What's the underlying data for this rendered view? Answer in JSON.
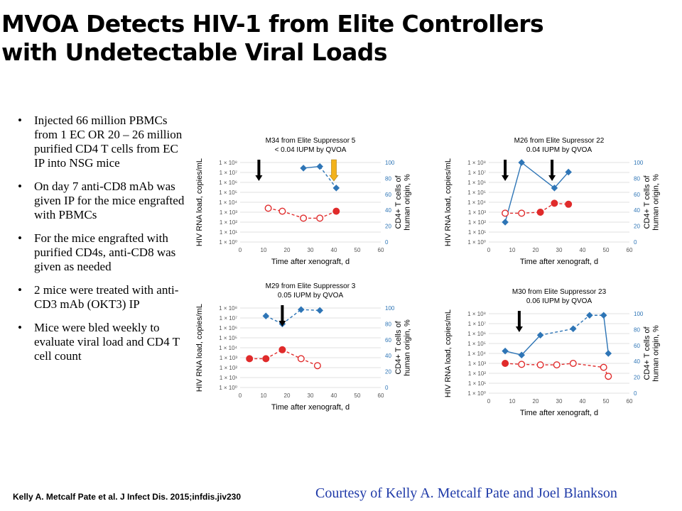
{
  "title": {
    "line1": "MVOA Detects HIV-1 from Elite Controllers",
    "line2": "with Undetectable Viral Loads"
  },
  "bullets": [
    "Injected 66 million PBMCs from 1 EC OR 20 – 26 million purified CD4 T cells from EC IP into NSG mice",
    "On day 7 anti-CD8 mAb was given IP for the mice engrafted with PBMCs",
    "For the mice engrafted with purified CD4s, anti-CD8 was given as needed",
    "2 mice were treated with anti-CD3 mAb (OKT3) IP",
    "Mice were bled weekly to evaluate viral load and CD4 T cell count"
  ],
  "citation": "Kelly A. Metcalf Pate et al. J Infect Dis. 2015;infdis.jiv230",
  "courtesy": "Courtesy of Kelly A. Metcalf Pate and Joel Blankson",
  "colors": {
    "cd4": "#2e75b6",
    "hiv": "#e02b2b",
    "black_arrow": "#000000",
    "orange_arrow": "#f3b21b"
  },
  "chart_data": [
    {
      "type": "line",
      "title": "M34 from Elite Suppressor 5",
      "subtitle": "< 0.04 IUPM by QVOA",
      "xlabel": "Time after xenograft, d",
      "ylabel": "HIV RNA load, copies/mL",
      "ylabel_right": "CD4+ T cells of human origin, %",
      "xlim": [
        0,
        60
      ],
      "xticks": [
        "0",
        "10",
        "20",
        "30",
        "40",
        "50",
        "60"
      ],
      "ylim_left_log10": [
        0,
        8
      ],
      "yticks_left": [
        "1 × 10⁰",
        "1 × 10¹",
        "1 × 10²",
        "1 × 10³",
        "1 × 10⁴",
        "1 × 10⁵",
        "1 × 10⁶",
        "1 × 10⁷",
        "1 × 10⁸"
      ],
      "ylim_right": [
        0,
        100
      ],
      "yticks_right": [
        "0",
        "20",
        "40",
        "60",
        "80",
        "100"
      ],
      "grid": true,
      "series": [
        {
          "role": "cd4",
          "color": "#2e75b6",
          "marker": "diamond",
          "points": [
            {
              "x": 27,
              "y": 93,
              "line_to_next": "solid"
            },
            {
              "x": 34,
              "y": 95,
              "line_to_next": "dashed"
            },
            {
              "x": 41,
              "y": 68
            }
          ]
        },
        {
          "role": "hiv",
          "color": "#e02b2b",
          "marker": "circle",
          "points": [
            {
              "x": 12,
              "y_log10": 3.4,
              "filled": false
            },
            {
              "x": 18,
              "y_log10": 3.1,
              "filled": false
            },
            {
              "x": 27,
              "y_log10": 2.4,
              "filled": false
            },
            {
              "x": 34,
              "y_log10": 2.4,
              "filled": false
            },
            {
              "x": 41,
              "y_log10": 3.1,
              "filled": true
            }
          ]
        }
      ],
      "arrows": [
        {
          "x": 8,
          "color": "black"
        },
        {
          "x": 40,
          "color": "orange"
        }
      ]
    },
    {
      "type": "line",
      "title": "M26 from Elite Supressor 22",
      "subtitle": "0.04 IUPM by QVOA",
      "xlabel": "Time after xenograft, d",
      "ylabel": "HIV RNA load, copies/mL",
      "ylabel_right": "CD4+ T cells of human origin, %",
      "xlim": [
        0,
        60
      ],
      "xticks": [
        "0",
        "10",
        "20",
        "30",
        "40",
        "50",
        "60"
      ],
      "ylim_left_log10": [
        0,
        8
      ],
      "yticks_left": [
        "1 × 10⁸",
        "1 × 10⁷",
        "1 × 10⁶",
        "1 × 10⁵",
        "1 × 10⁴",
        "1 × 10³",
        "1 × 10²",
        "1 × 10¹",
        "1 × 10⁰"
      ],
      "ylim_right": [
        0,
        100
      ],
      "yticks_right": [
        "0",
        "20",
        "40",
        "60",
        "80",
        "100"
      ],
      "grid": true,
      "series": [
        {
          "role": "cd4",
          "color": "#2e75b6",
          "marker": "diamond",
          "points": [
            {
              "x": 7,
              "y": 25,
              "line_to_next": "solid"
            },
            {
              "x": 14,
              "y": 100,
              "line_to_next": "solid"
            },
            {
              "x": 28,
              "y": 68,
              "line_to_next": "solid"
            },
            {
              "x": 34,
              "y": 88
            }
          ]
        },
        {
          "role": "hiv",
          "color": "#e02b2b",
          "marker": "circle",
          "points": [
            {
              "x": 7,
              "y_log10": 2.9,
              "filled": false
            },
            {
              "x": 14,
              "y_log10": 2.9,
              "filled": false
            },
            {
              "x": 22,
              "y_log10": 3.0,
              "filled": true
            },
            {
              "x": 28,
              "y_log10": 3.9,
              "filled": true
            },
            {
              "x": 34,
              "y_log10": 3.8,
              "filled": true
            }
          ]
        }
      ],
      "arrows": [
        {
          "x": 7,
          "color": "black"
        },
        {
          "x": 27,
          "color": "black"
        }
      ]
    },
    {
      "type": "line",
      "title": "M29 from Elite Suppressor 3",
      "subtitle": "0.05 IUPM by QVOA",
      "xlabel": "Time after xenograft, d",
      "ylabel": "HIV RNA load, copies/mL",
      "ylabel_right": "CD4+ T cells of human origin, %",
      "xlim": [
        0,
        60
      ],
      "xticks": [
        "0",
        "10",
        "20",
        "30",
        "40",
        "50",
        "60"
      ],
      "ylim_left_log10": [
        0,
        8
      ],
      "yticks_left": [
        "1 × 10⁸",
        "1 × 10⁷",
        "1 × 10⁶",
        "1 × 10⁵",
        "1 × 10⁴",
        "1 × 10³",
        "1 × 10²",
        "1 × 10¹",
        "1 × 10⁰"
      ],
      "ylim_right": [
        0,
        100
      ],
      "yticks_right": [
        "0",
        "20",
        "40",
        "60",
        "80",
        "100"
      ],
      "grid": true,
      "series": [
        {
          "role": "cd4",
          "color": "#2e75b6",
          "marker": "diamond",
          "points": [
            {
              "x": 11,
              "y": 90,
              "line_to_next": "dashed"
            },
            {
              "x": 18,
              "y": 80,
              "line_to_next": "dashed"
            },
            {
              "x": 26,
              "y": 98,
              "line_to_next": "dashed"
            },
            {
              "x": 34,
              "y": 97
            }
          ]
        },
        {
          "role": "hiv",
          "color": "#e02b2b",
          "marker": "circle",
          "points": [
            {
              "x": 4,
              "y_log10": 2.9,
              "filled": true
            },
            {
              "x": 11,
              "y_log10": 2.9,
              "filled": true
            },
            {
              "x": 18,
              "y_log10": 3.8,
              "filled": true
            },
            {
              "x": 26,
              "y_log10": 2.9,
              "filled": false
            },
            {
              "x": 33,
              "y_log10": 2.2,
              "filled": false
            }
          ]
        }
      ],
      "arrows": [
        {
          "x": 18,
          "color": "black"
        }
      ]
    },
    {
      "type": "line",
      "title": "M30 from Elite Suppressor 23",
      "subtitle": "0.06 IUPM by QVOA",
      "xlabel": "Time after xenograft, d",
      "ylabel": "HIV RNA load, copies/mL",
      "ylabel_right": "CD4+ T cells of human origin, %",
      "xlim": [
        0,
        60
      ],
      "xticks": [
        "0",
        "10",
        "20",
        "30",
        "40",
        "50",
        "60"
      ],
      "ylim_left_log10": [
        0,
        8
      ],
      "yticks_left": [
        "1 × 10⁸",
        "1 × 10⁷",
        "1 × 10⁶",
        "1 × 10⁵",
        "1 × 10⁴",
        "1 × 10³",
        "1 × 10²",
        "1 × 10¹",
        "1 × 10⁰"
      ],
      "ylim_right": [
        0,
        100
      ],
      "yticks_right": [
        "0",
        "20",
        "40",
        "60",
        "80",
        "100"
      ],
      "grid": true,
      "series": [
        {
          "role": "cd4",
          "color": "#2e75b6",
          "marker": "diamond",
          "points": [
            {
              "x": 7,
              "y": 53,
              "line_to_next": "solid"
            },
            {
              "x": 14,
              "y": 48,
              "line_to_next": "solid"
            },
            {
              "x": 22,
              "y": 73,
              "line_to_next": "dashed"
            },
            {
              "x": 36,
              "y": 81,
              "line_to_next": "dashed"
            },
            {
              "x": 43,
              "y": 98,
              "line_to_next": "dashed"
            },
            {
              "x": 49,
              "y": 98,
              "line_to_next": "solid"
            },
            {
              "x": 51,
              "y": 50
            }
          ]
        },
        {
          "role": "hiv",
          "color": "#e02b2b",
          "marker": "circle",
          "points": [
            {
              "x": 7,
              "y_log10": 3.0,
              "filled": true
            },
            {
              "x": 14,
              "y_log10": 2.9,
              "filled": false
            },
            {
              "x": 22,
              "y_log10": 2.85,
              "filled": false
            },
            {
              "x": 29,
              "y_log10": 2.85,
              "filled": false
            },
            {
              "x": 36,
              "y_log10": 3.0,
              "filled": false
            },
            {
              "x": 49,
              "y_log10": 2.6,
              "filled": false
            },
            {
              "x": 51,
              "y_log10": 1.7,
              "filled": false
            }
          ]
        }
      ],
      "arrows": [
        {
          "x": 13,
          "color": "black"
        }
      ]
    }
  ]
}
